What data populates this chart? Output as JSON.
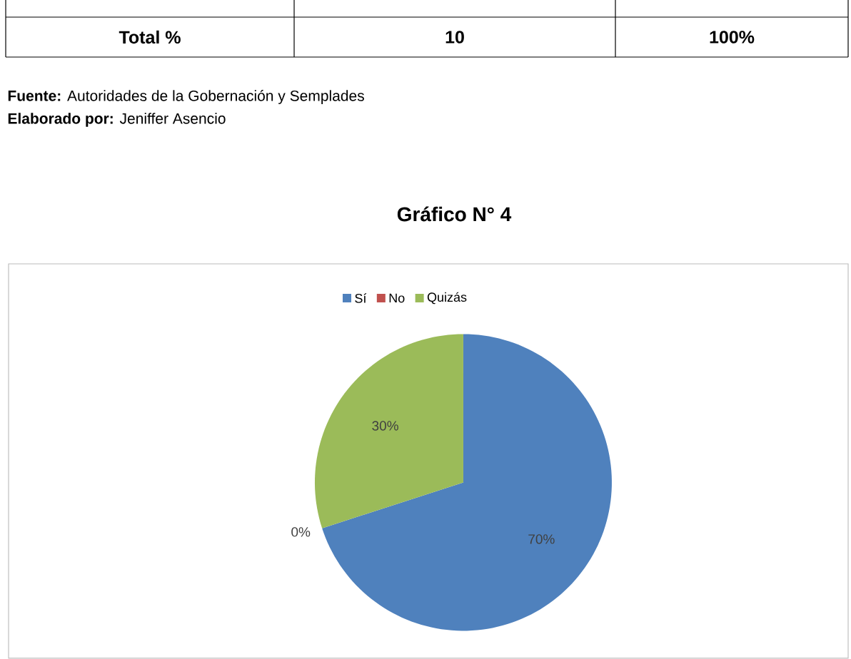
{
  "chart_data": {
    "type": "pie",
    "title": "Gráfico N° 4",
    "categories": [
      "Sí",
      "No",
      "Quizás"
    ],
    "values": [
      70,
      0,
      30
    ],
    "colors": [
      "#4f81bd",
      "#c0504d",
      "#9bbb59"
    ],
    "value_labels": [
      "70%",
      "0%",
      "30%"
    ],
    "legend": "top",
    "annotations": [
      "Total %",
      "10",
      "100%",
      "**Fuente:** Autoridades de la Gobernación y Semplades",
      "**Elaborado por:** Jeniffer Asencio"
    ]
  }
}
